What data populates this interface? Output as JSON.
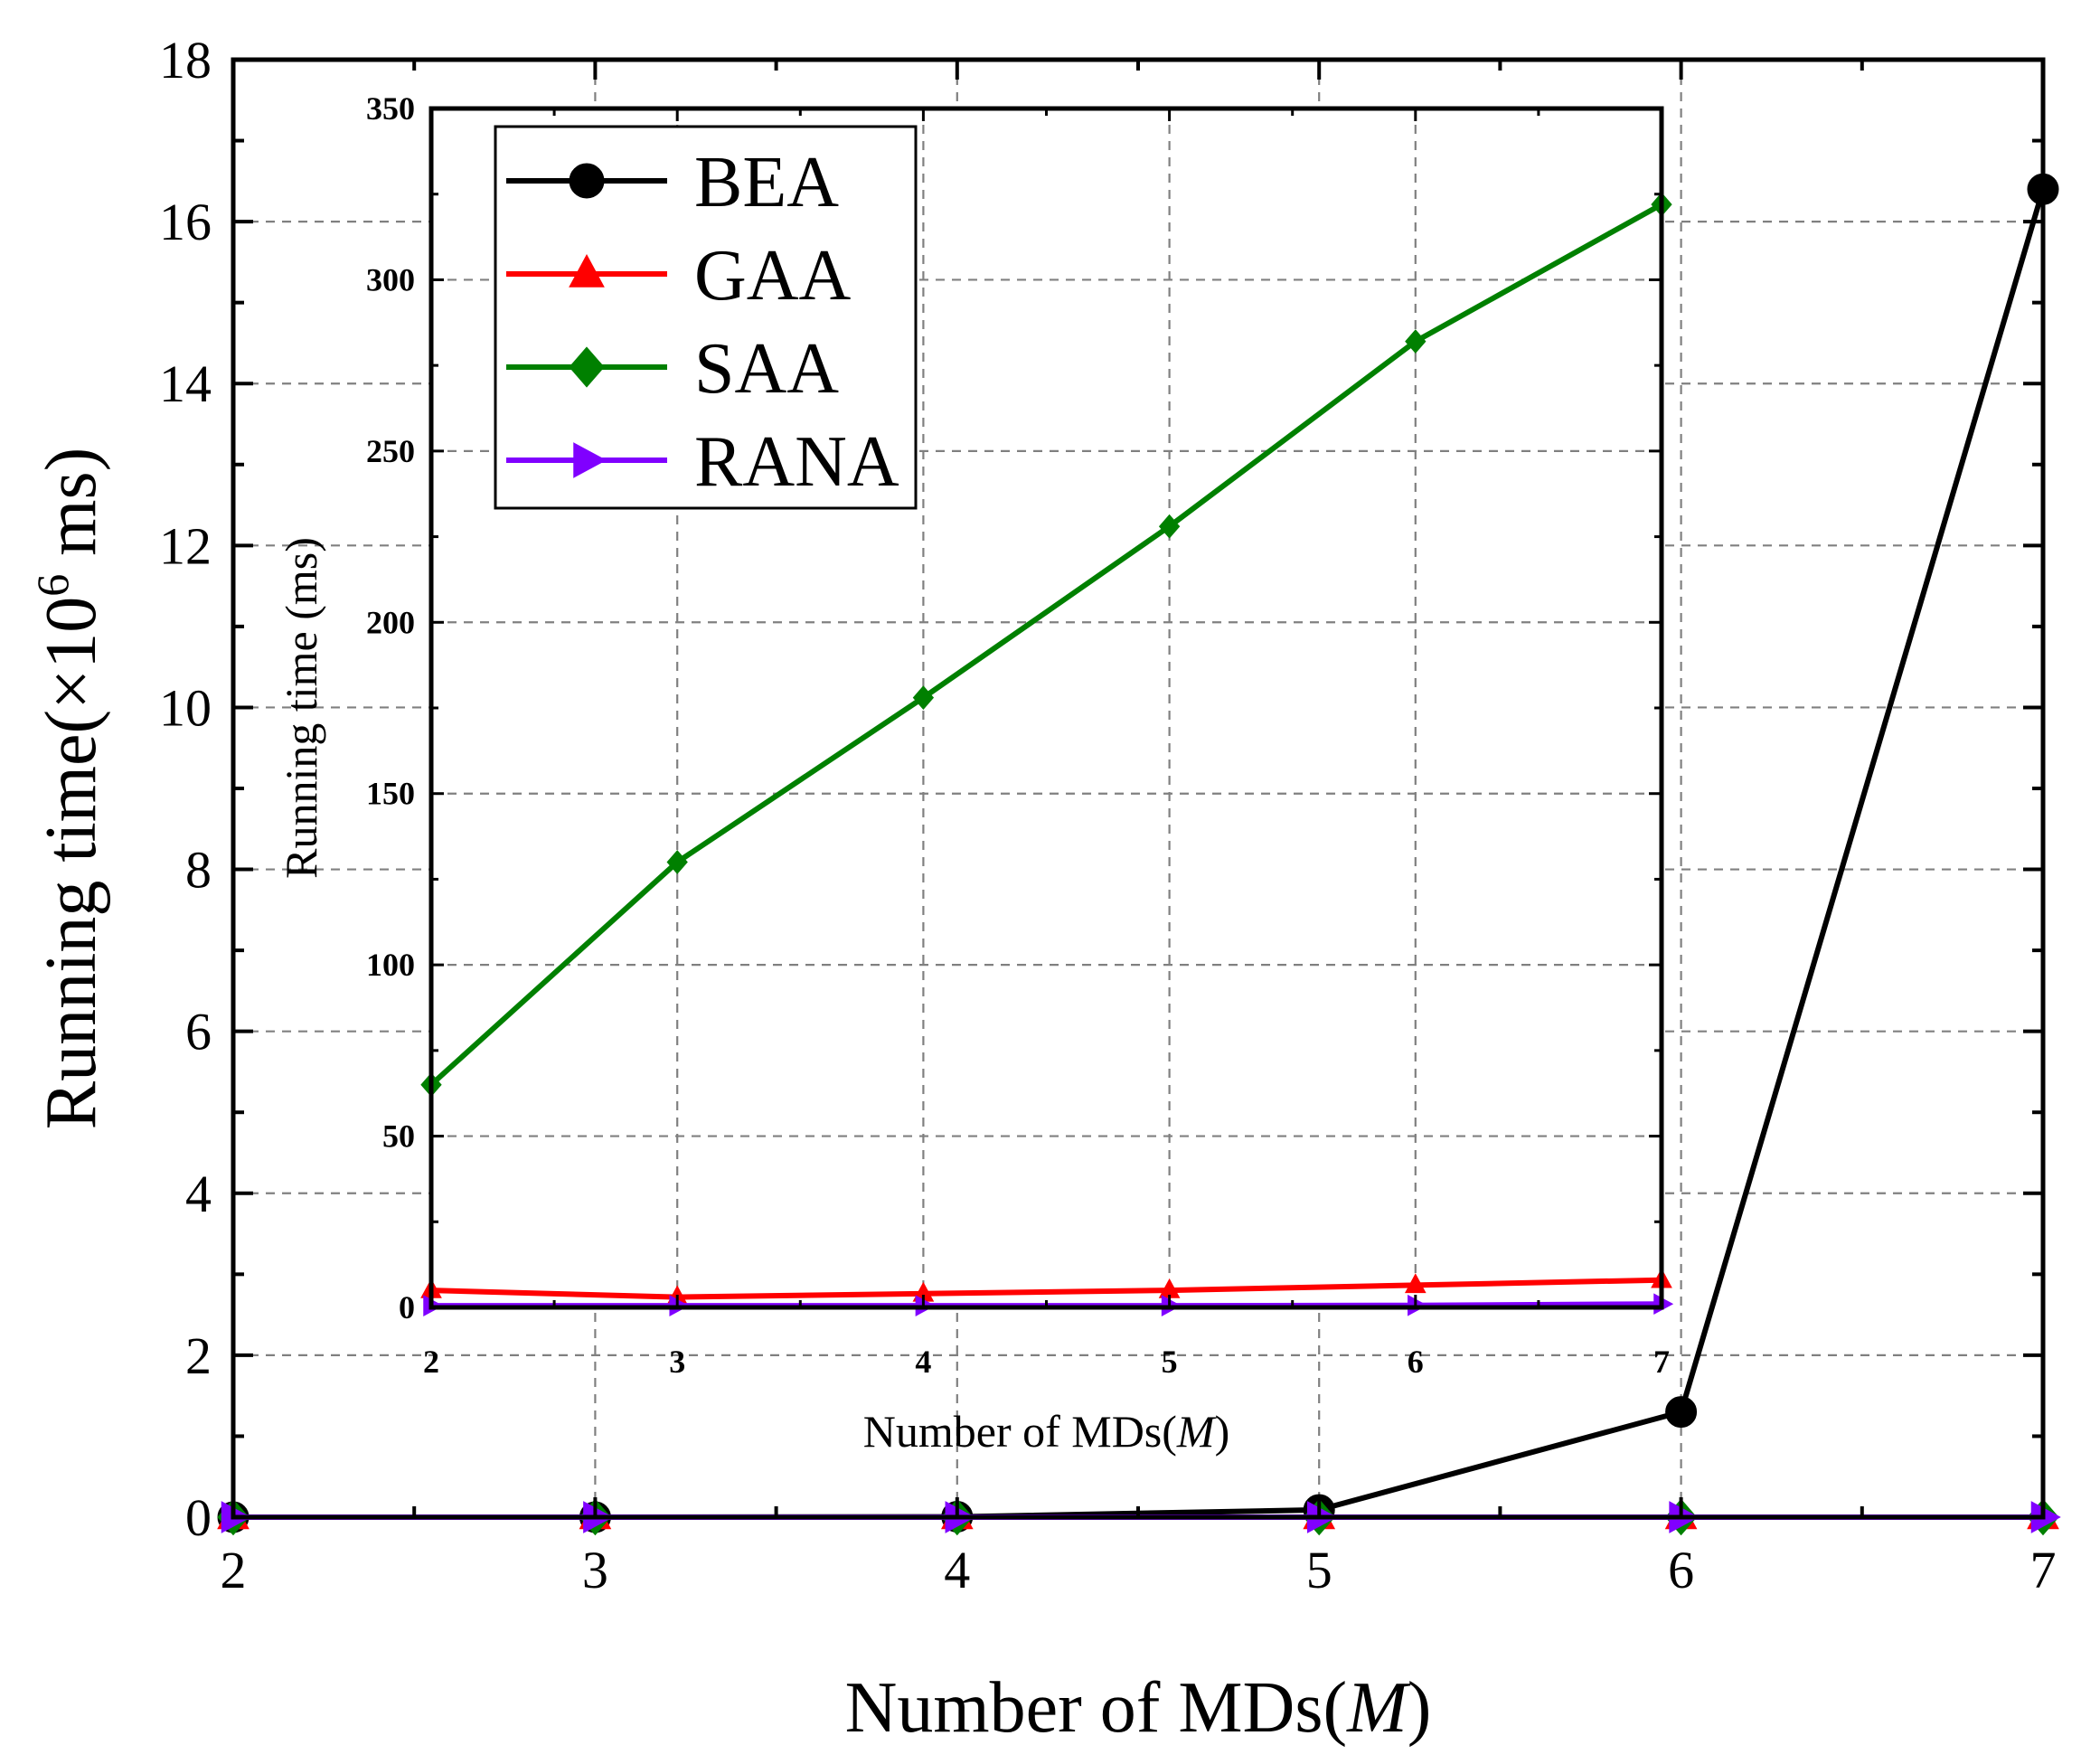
{
  "chart_data": [
    {
      "id": "main",
      "type": "line",
      "xlabel": "Number of MDs(M)",
      "xlabel_parts": [
        "Number of MDs(",
        "M",
        ")"
      ],
      "ylabel": "Running time(×10⁶ ms)",
      "ylabel_parts": [
        "Running time(×10",
        "6",
        " ms)"
      ],
      "xlim": [
        2,
        7
      ],
      "ylim": [
        0,
        18
      ],
      "xticks": [
        2,
        3,
        4,
        5,
        6,
        7
      ],
      "yticks": [
        0,
        2,
        4,
        6,
        8,
        10,
        12,
        14,
        16,
        18
      ],
      "grid": true,
      "series": [
        {
          "name": "BEA",
          "color": "#000000",
          "marker": "circle",
          "x": [
            2,
            3,
            4,
            5,
            6,
            7
          ],
          "y": [
            0.0,
            0.0,
            0.005,
            0.09,
            1.3,
            16.4
          ]
        },
        {
          "name": "GAA",
          "color": "#ff0000",
          "marker": "triangle-up",
          "x": [
            2,
            3,
            4,
            5,
            6,
            7
          ],
          "y": [
            0.0,
            0.0,
            0.0,
            0.0,
            0.0,
            0.0
          ]
        },
        {
          "name": "SAA",
          "color": "#008000",
          "marker": "diamond",
          "x": [
            2,
            3,
            4,
            5,
            6,
            7
          ],
          "y": [
            0.0,
            0.0,
            0.0,
            0.0,
            0.0,
            0.0
          ]
        },
        {
          "name": "RANA",
          "color": "#8000ff",
          "marker": "triangle-right",
          "x": [
            2,
            3,
            4,
            5,
            6,
            7
          ],
          "y": [
            0.0,
            0.0,
            0.0,
            0.0,
            0.0,
            0.0
          ]
        }
      ]
    },
    {
      "id": "inset",
      "type": "line",
      "xlabel": "Number of MDs(M)",
      "xlabel_parts": [
        "Number of MDs(",
        "M",
        ")"
      ],
      "ylabel": "Running time (ms)",
      "xlim": [
        2,
        7
      ],
      "ylim": [
        0,
        350
      ],
      "xticks": [
        2,
        3,
        4,
        5,
        6,
        7
      ],
      "yticks": [
        0,
        50,
        100,
        150,
        200,
        250,
        300,
        350
      ],
      "grid": true,
      "series": [
        {
          "name": "GAA",
          "color": "#ff0000",
          "marker": "triangle-up",
          "x": [
            2,
            3,
            4,
            5,
            6,
            7
          ],
          "y": [
            5,
            3,
            4,
            5,
            6.5,
            8
          ]
        },
        {
          "name": "SAA",
          "color": "#008000",
          "marker": "diamond",
          "x": [
            2,
            3,
            4,
            5,
            6,
            7
          ],
          "y": [
            65,
            130,
            178,
            228,
            282,
            322
          ]
        },
        {
          "name": "RANA",
          "color": "#8000ff",
          "marker": "triangle-right",
          "x": [
            2,
            3,
            4,
            5,
            6,
            7
          ],
          "y": [
            0.5,
            0.5,
            0.5,
            0.5,
            0.6,
            1.0
          ]
        }
      ]
    }
  ],
  "legend": {
    "placement": "inset top-left",
    "entries": [
      {
        "name": "BEA",
        "color": "#000000",
        "marker": "circle"
      },
      {
        "name": "GAA",
        "color": "#ff0000",
        "marker": "triangle-up"
      },
      {
        "name": "SAA",
        "color": "#008000",
        "marker": "diamond"
      },
      {
        "name": "RANA",
        "color": "#8000ff",
        "marker": "triangle-right"
      }
    ]
  }
}
